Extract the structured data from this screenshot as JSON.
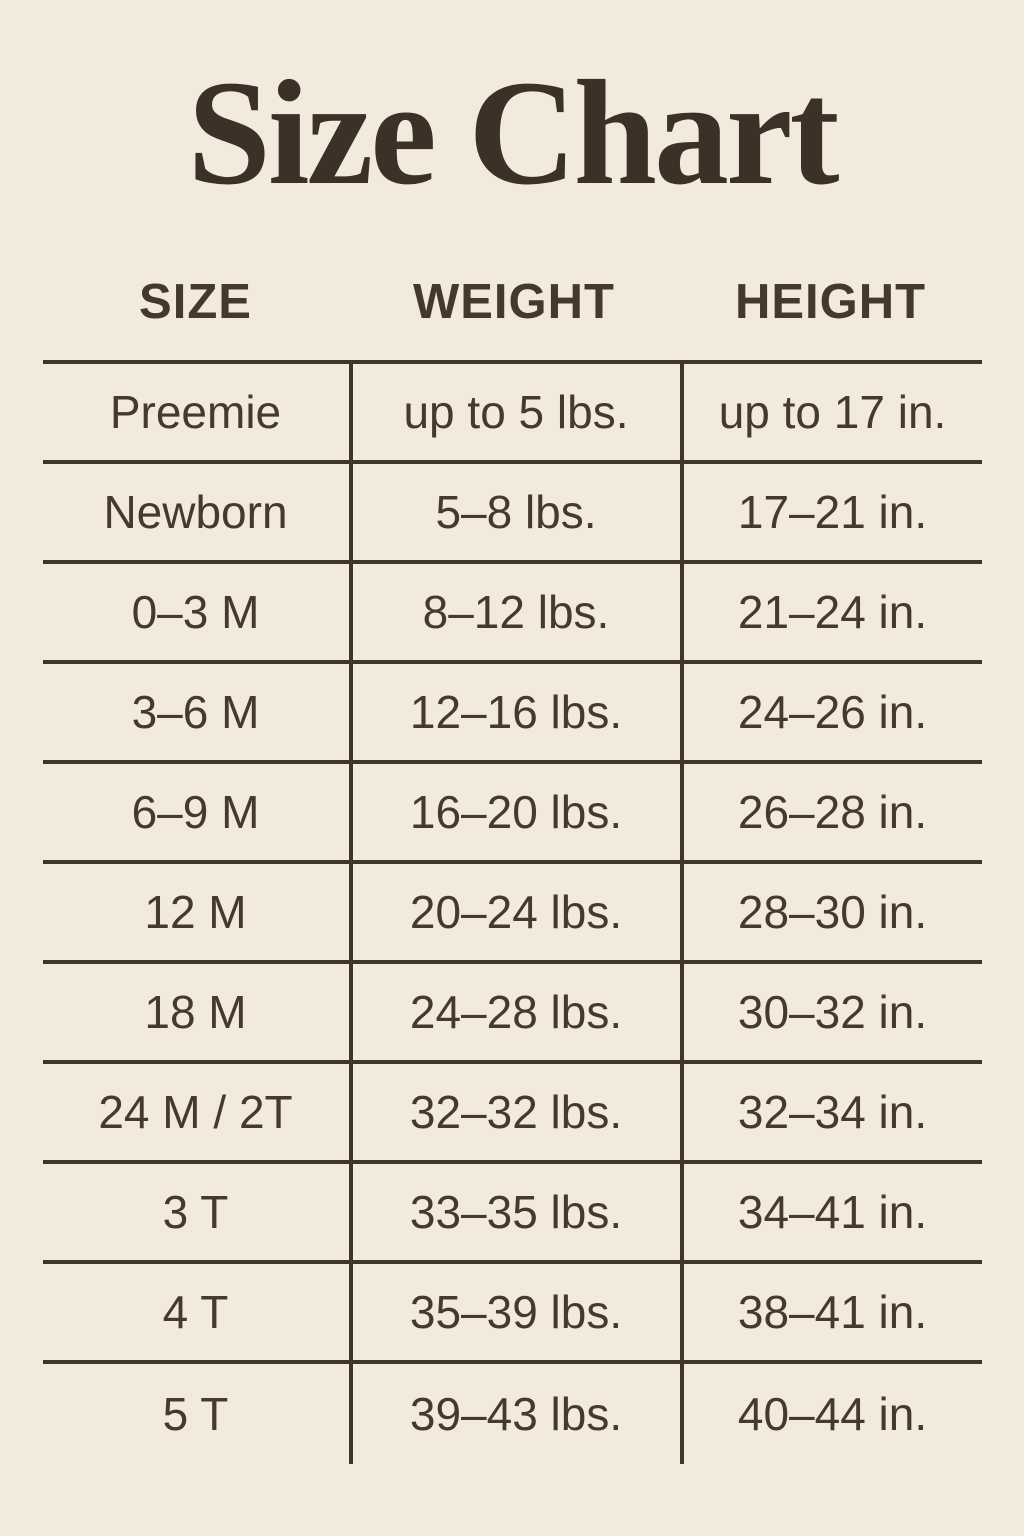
{
  "page": {
    "background_color": "#f2ebdd",
    "text_color": "#473a2c",
    "rule_color": "#3f352a",
    "title_color": "#3c3126"
  },
  "chart_data": {
    "type": "table",
    "title": "Size Chart",
    "columns": [
      "SIZE",
      "WEIGHT",
      "HEIGHT"
    ],
    "rows": [
      [
        "Preemie",
        "up to 5 lbs.",
        "up to 17 in."
      ],
      [
        "Newborn",
        "5–8 lbs.",
        "17–21 in."
      ],
      [
        "0–3 M",
        "8–12 lbs.",
        "21–24 in."
      ],
      [
        "3–6 M",
        "12–16 lbs.",
        "24–26 in."
      ],
      [
        "6–9 M",
        "16–20 lbs.",
        "26–28 in."
      ],
      [
        "12 M",
        "20–24 lbs.",
        "28–30 in."
      ],
      [
        "18 M",
        "24–28 lbs.",
        "30–32 in."
      ],
      [
        "24 M / 2T",
        "32–32 lbs.",
        "32–34 in."
      ],
      [
        "3 T",
        "33–35 lbs.",
        "34–41 in."
      ],
      [
        "4 T",
        "35–39 lbs.",
        "38–41 in."
      ],
      [
        "5 T",
        "39–43 lbs.",
        "40–44 in."
      ]
    ]
  }
}
